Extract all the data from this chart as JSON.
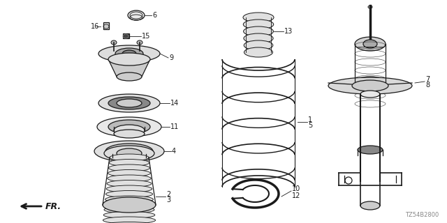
{
  "bg_color": "#ffffff",
  "line_color": "#1a1a1a",
  "fig_width": 6.4,
  "fig_height": 3.2,
  "dpi": 100,
  "diagram_code": "TZ54B2800"
}
